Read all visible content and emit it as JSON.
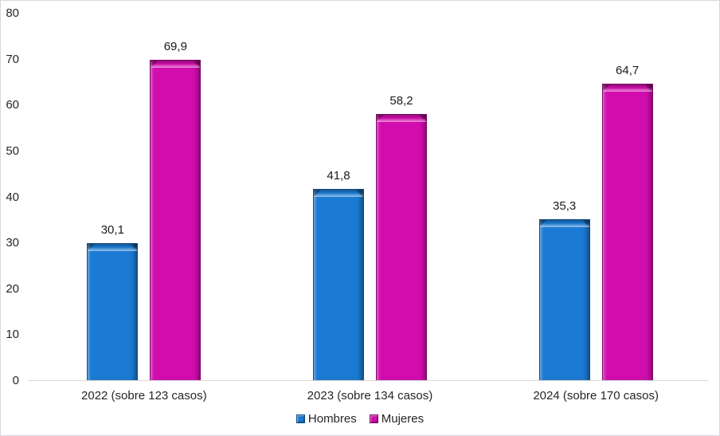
{
  "chart_data": {
    "type": "bar",
    "title": "",
    "categories": [
      "2022 (sobre 123 casos)",
      "2023 (sobre 134 casos)",
      "2024 (sobre 170 casos)"
    ],
    "series": [
      {
        "name": "Hombres",
        "color": "#1b7ad3",
        "edge_color": "#0d4d85",
        "values": [
          30.1,
          41.8,
          35.3
        ]
      },
      {
        "name": "Mujeres",
        "color": "#d20dad",
        "edge_color": "#7c0766",
        "values": [
          69.9,
          58.2,
          64.7
        ]
      }
    ],
    "value_label_format": "comma_decimal",
    "y_axis": {
      "min": 0,
      "max": 80,
      "step": 10,
      "tick_labels": [
        "0",
        "10",
        "20",
        "30",
        "40",
        "50",
        "60",
        "70",
        "80"
      ]
    },
    "x_axis_line_color": "#d9d9d9",
    "grid": false,
    "legend": {
      "position": "bottom",
      "entries": [
        "Hombres",
        "Mujeres"
      ]
    },
    "background_color": "#ffffff",
    "frame_border_color": "#d9d6dc",
    "bevel_style": "3d-beveled-bars"
  }
}
